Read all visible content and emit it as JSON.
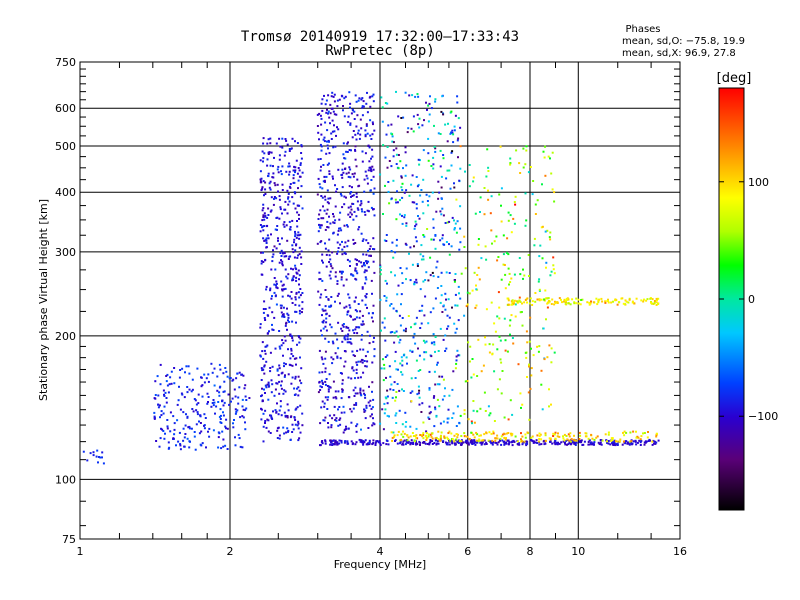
{
  "chart_data": {
    "type": "scatter",
    "title": "Tromsø 20140919 17:32:00–17:33:43",
    "subtitle": "RwPretec (8p)",
    "xlabel": "Frequency [MHz]",
    "ylabel": "Stationary phase Virtual Height [km]",
    "xscale": "log",
    "yscale": "log",
    "xlim": [
      1,
      16
    ],
    "ylim": [
      75,
      750
    ],
    "grid": true,
    "x_ticks": [
      1,
      2,
      4,
      6,
      8,
      10,
      16
    ],
    "x_tick_labels": [
      "1",
      "2",
      "4",
      "6",
      "8",
      "10",
      "16"
    ],
    "x_minor_ticks": [
      1.2,
      1.4,
      1.6,
      1.8,
      2.5,
      3,
      3.5,
      4.5,
      5,
      5.5,
      7,
      9,
      12,
      14
    ],
    "y_ticks": [
      75,
      100,
      200,
      300,
      400,
      500,
      600,
      750
    ],
    "y_tick_labels": [
      "75",
      "100",
      "200",
      "300",
      "400",
      "500",
      "600",
      "750"
    ],
    "y_minor_ticks": [
      80,
      90,
      110,
      120,
      130,
      140,
      150,
      160,
      170,
      180,
      190,
      225,
      250,
      275,
      325,
      350,
      375,
      425,
      450,
      475,
      525,
      550,
      575,
      625,
      650,
      675,
      700,
      725
    ],
    "stats": {
      "heading": "Phases",
      "line_o": "mean, sd,O: −75.8, 19.9",
      "line_x": "mean, sd,X:  96.9, 27.8"
    },
    "colorbar": {
      "label": "[deg]",
      "range": [
        -180,
        180
      ],
      "ticks": [
        100,
        0,
        -100
      ],
      "tick_labels": [
        "100",
        "0",
        "−100"
      ],
      "colormap": "rainbow (black → violet → blue → cyan → green → yellow → orange → red)"
    },
    "point_clusters": [
      {
        "name": "low-freq trace",
        "f_range": [
          1.0,
          1.12
        ],
        "h_range": [
          108,
          115
        ],
        "phase_mean": -80,
        "phase_sd": 10,
        "count": 14
      },
      {
        "name": "E/F1 ramp",
        "f_range": [
          1.4,
          2.2
        ],
        "h_range": [
          115,
          175
        ],
        "phase_mean": -85,
        "phase_sd": 15,
        "count": 260
      },
      {
        "name": "column 2.3-2.8 MHz",
        "f_range": [
          2.3,
          2.8
        ],
        "h_range": [
          120,
          520
        ],
        "phase_mean": -95,
        "phase_sd": 15,
        "count": 560
      },
      {
        "name": "column 3.0-3.9 MHz",
        "f_range": [
          3.0,
          3.9
        ],
        "h_range": [
          125,
          650
        ],
        "phase_mean": -95,
        "phase_sd": 20,
        "count": 720
      },
      {
        "name": "column 4.0-5.8 MHz",
        "f_range": [
          4.0,
          5.8
        ],
        "h_range": [
          125,
          650
        ],
        "phase_mean": -55,
        "phase_sd": 70,
        "count": 520
      },
      {
        "name": "scatter 5.8-9 MHz",
        "f_range": [
          5.8,
          9.0
        ],
        "h_range": [
          130,
          500
        ],
        "phase_mean": 60,
        "phase_sd": 70,
        "count": 260
      },
      {
        "name": "lower trace O",
        "f_range": [
          3.0,
          14.5
        ],
        "h_range": [
          118,
          121
        ],
        "phase_mean": -100,
        "phase_sd": 12,
        "count": 420
      },
      {
        "name": "lower trace X",
        "f_range": [
          4.2,
          14.5
        ],
        "h_range": [
          120,
          126
        ],
        "phase_mean": 100,
        "phase_sd": 35,
        "count": 230
      },
      {
        "name": "upper trace 240 km",
        "f_range": [
          7.2,
          14.5
        ],
        "h_range": [
          232,
          240
        ],
        "phase_mean": 90,
        "phase_sd": 25,
        "count": 150
      }
    ]
  }
}
